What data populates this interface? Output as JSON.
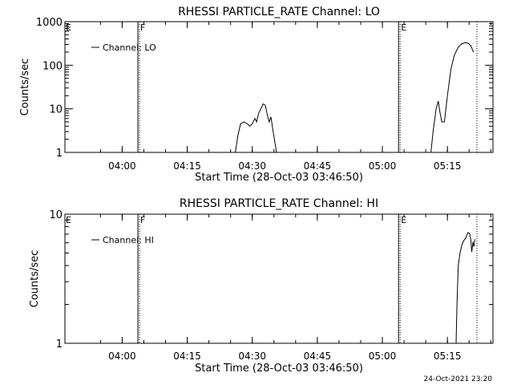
{
  "footer": {
    "timestamp": "24-Oct-2021 23:20"
  },
  "chart_data": [
    {
      "type": "line",
      "title": "RHESSI PARTICLE_RATE Channel: LO",
      "xlabel": "Start Time (28-Oct-03 03:46:50)",
      "ylabel": "Counts/sec",
      "yscale": "log",
      "ylim": [
        1,
        1000
      ],
      "xlim_minutes": [
        0,
        98.7
      ],
      "x_ticks": [
        {
          "label": "04:00",
          "minutes": 13.2
        },
        {
          "label": "04:15",
          "minutes": 28.2
        },
        {
          "label": "04:30",
          "minutes": 43.2
        },
        {
          "label": "04:45",
          "minutes": 58.2
        },
        {
          "label": "05:00",
          "minutes": 73.2
        },
        {
          "label": "05:15",
          "minutes": 88.2
        }
      ],
      "y_ticks": [
        {
          "label": "1",
          "value": 1
        },
        {
          "label": "10",
          "value": 10
        },
        {
          "label": "100",
          "value": 100
        },
        {
          "label": "1000",
          "value": 1000
        }
      ],
      "legend": {
        "label": "Channel: LO",
        "position": "top-left"
      },
      "markers": [
        {
          "label": "E",
          "minutes": 0,
          "style": "none"
        },
        {
          "label": "F",
          "minutes": 17.2,
          "style": "dotted"
        },
        {
          "label": "E",
          "minutes": 77.3,
          "style": "dotted"
        },
        {
          "label": "",
          "minutes": 95.0,
          "style": "dotted"
        }
      ],
      "series": [
        {
          "segments": [
            [
              [
                39.3,
                1
              ],
              [
                39.9,
                2.5
              ],
              [
                40.5,
                4.5
              ],
              [
                41.3,
                5
              ],
              [
                42.1,
                4.5
              ],
              [
                42.6,
                4
              ],
              [
                43.2,
                4.5
              ],
              [
                43.8,
                6
              ],
              [
                44.2,
                5
              ],
              [
                44.7,
                8
              ],
              [
                45.2,
                10
              ],
              [
                45.7,
                13
              ],
              [
                46.2,
                12
              ],
              [
                46.7,
                7
              ],
              [
                47.1,
                5
              ],
              [
                47.5,
                6.5
              ],
              [
                47.9,
                3.5
              ],
              [
                48.3,
                2
              ],
              [
                48.8,
                1
              ]
            ],
            [
              [
                50.2,
                1
              ],
              [
                50.8,
                1
              ]
            ],
            [
              [
                84.4,
                1
              ],
              [
                84.9,
                3
              ],
              [
                85.6,
                10
              ],
              [
                86.1,
                15
              ],
              [
                86.5,
                8
              ],
              [
                86.9,
                5
              ],
              [
                87.5,
                5
              ],
              [
                88.2,
                20
              ],
              [
                89.0,
                80
              ],
              [
                89.8,
                170
              ],
              [
                90.7,
                260
              ],
              [
                91.5,
                310
              ],
              [
                92.3,
                330
              ],
              [
                93.0,
                320
              ],
              [
                93.6,
                280
              ],
              [
                94.2,
                200
              ]
            ]
          ]
        }
      ]
    },
    {
      "type": "line",
      "title": "RHESSI PARTICLE_RATE Channel: HI",
      "xlabel": "Start Time (28-Oct-03 03:46:50)",
      "ylabel": "Counts/sec",
      "yscale": "log",
      "ylim": [
        1,
        10
      ],
      "xlim_minutes": [
        0,
        98.7
      ],
      "x_ticks": [
        {
          "label": "04:00",
          "minutes": 13.2
        },
        {
          "label": "04:15",
          "minutes": 28.2
        },
        {
          "label": "04:30",
          "minutes": 43.2
        },
        {
          "label": "04:45",
          "minutes": 58.2
        },
        {
          "label": "05:00",
          "minutes": 73.2
        },
        {
          "label": "05:15",
          "minutes": 88.2
        }
      ],
      "y_ticks": [
        {
          "label": "1",
          "value": 1
        },
        {
          "label": "10",
          "value": 10
        }
      ],
      "legend": {
        "label": "Channel: HI",
        "position": "top-left"
      },
      "markers": [
        {
          "label": "E",
          "minutes": 0,
          "style": "none"
        },
        {
          "label": "F",
          "minutes": 17.2,
          "style": "dotted"
        },
        {
          "label": "E",
          "minutes": 77.3,
          "style": "dotted"
        },
        {
          "label": "",
          "minutes": 95.0,
          "style": "dotted"
        }
      ],
      "series": [
        {
          "segments": [
            [
              [
                90.2,
                1
              ],
              [
                90.4,
                2
              ],
              [
                90.7,
                4
              ],
              [
                91.1,
                5
              ],
              [
                91.5,
                5.7
              ],
              [
                91.9,
                6.2
              ],
              [
                92.4,
                6.5
              ],
              [
                92.9,
                7.2
              ],
              [
                93.3,
                7.1
              ],
              [
                93.6,
                6.3
              ],
              [
                93.8,
                5.1
              ],
              [
                94.1,
                6.1
              ],
              [
                94.3,
                5.6
              ],
              [
                94.5,
                6.4
              ]
            ]
          ]
        }
      ]
    }
  ]
}
